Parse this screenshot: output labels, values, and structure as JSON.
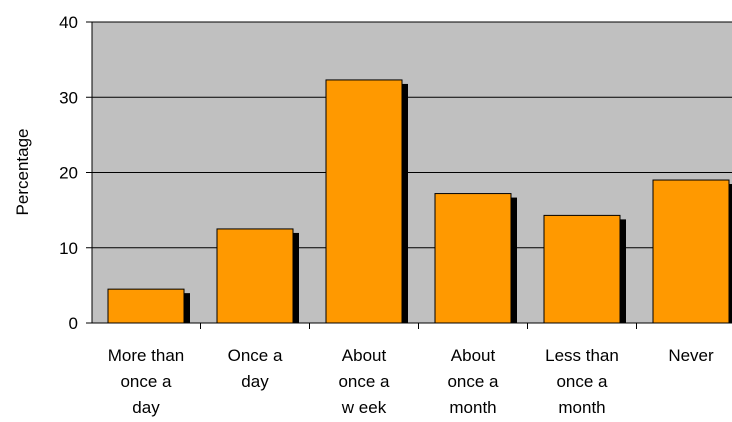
{
  "chart_data": {
    "type": "bar",
    "title": "",
    "xlabel": "",
    "ylabel": "Percentage",
    "ylim": [
      0,
      40
    ],
    "yticks": [
      0,
      10,
      20,
      30,
      40
    ],
    "grid": true,
    "legend": "none",
    "categories": [
      [
        "More than",
        "once a",
        "day"
      ],
      [
        "Once a",
        "day"
      ],
      [
        "About",
        "once a",
        "w eek"
      ],
      [
        "About",
        "once a",
        "month"
      ],
      [
        "Less than",
        "once a",
        "month"
      ],
      [
        "Never"
      ]
    ],
    "values": [
      4.5,
      12.5,
      32.3,
      17.2,
      14.3,
      19.0
    ],
    "colors": {
      "bar": "#FF9900",
      "bar_outline": "#000000",
      "shadow": "#000000",
      "plot_background": "#C0C0C0",
      "gridline": "#000000",
      "axis": "#000000"
    }
  }
}
